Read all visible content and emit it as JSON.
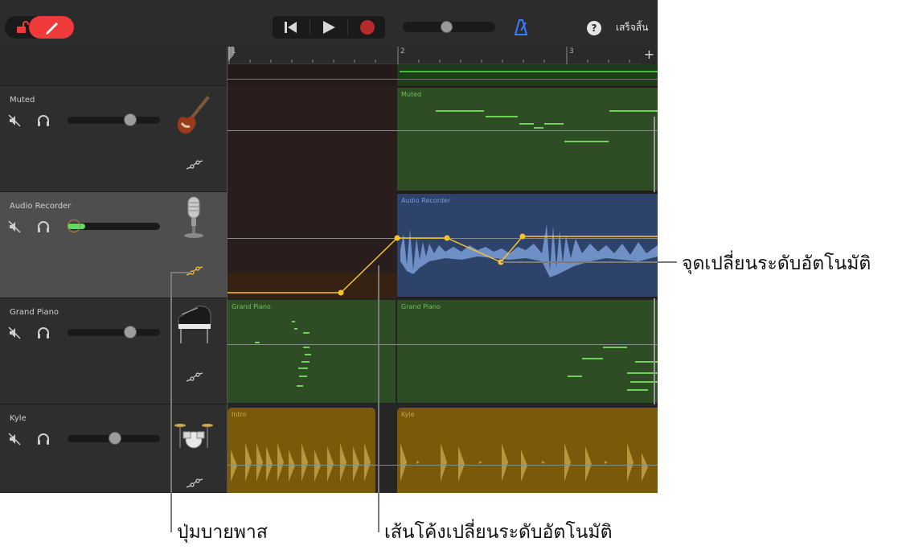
{
  "toolbar": {
    "done_label": "เสร็จสิ้น",
    "help_label": "?",
    "accent_color": "#f03a3a",
    "metronome_color": "#3d7bff"
  },
  "ruler": {
    "bars": [
      "1",
      "2",
      "3"
    ],
    "add_label": "+"
  },
  "tracks": [
    {
      "name": "Muted",
      "instrument": "bass-guitar-icon",
      "volume_level": 0.68
    },
    {
      "name": "Audio Recorder",
      "instrument": "microphone-icon",
      "volume_level": 0.05
    },
    {
      "name": "Grand Piano",
      "instrument": "grand-piano-icon",
      "volume_level": 0.68
    },
    {
      "name": "Kyle",
      "instrument": "drum-kit-icon",
      "volume_level": 0.5
    }
  ],
  "regions": {
    "muted": "Muted",
    "audio": "Audio Recorder",
    "piano1": "Grand Piano",
    "piano2": "Grand Piano",
    "intro": "Intro",
    "kyle": "Kyle"
  },
  "callouts": {
    "points": "จุดเปลี่ยนระดับอัตโนมัติ",
    "bypass": "ปุ่มบายพาส",
    "curve": "เส้นโค้งเปลี่ยนระดับอัตโนมัติ"
  },
  "colors": {
    "automation": "#f7c52a",
    "green_region": "#2e4d25",
    "audio_region": "#2e436a",
    "drum_region": "#7a5a0a"
  }
}
